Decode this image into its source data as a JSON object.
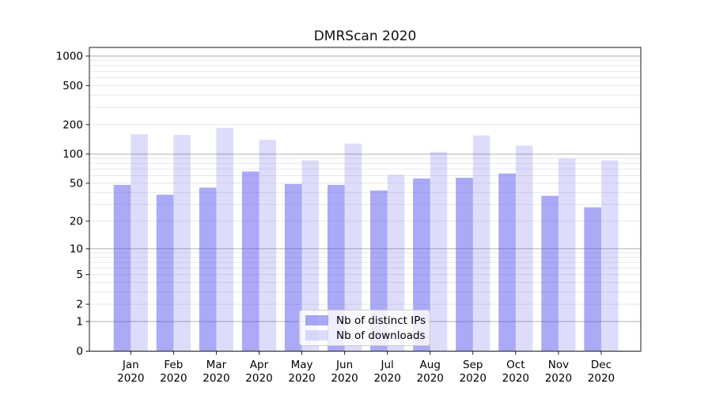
{
  "chart_data": {
    "type": "bar",
    "title": "DMRScan 2020",
    "xlabel": "",
    "ylabel": "",
    "x_tick_months": [
      "Jan",
      "Feb",
      "Mar",
      "Apr",
      "May",
      "Jun",
      "Jul",
      "Aug",
      "Sep",
      "Oct",
      "Nov",
      "Dec"
    ],
    "x_tick_year": "2020",
    "y_ticks": [
      0,
      1,
      2,
      5,
      10,
      20,
      50,
      100,
      200,
      500,
      1000
    ],
    "y_scale": "log10(value+1)",
    "ylim": [
      0,
      1190
    ],
    "grid": "horizontal major and minor gridlines",
    "legend_position": "lower center",
    "colors": {
      "bar_base": "#4242eb",
      "distinct_ips_on_white": "#a8a8ee",
      "downloads_on_white": "#dcdcf6",
      "grid_major": "#b0b0b0",
      "grid_minor": "#e8e8e8",
      "axis": "#1a1a1a"
    },
    "series": [
      {
        "name": "Nb of distinct IPs",
        "color": "rgba(66,66,235,0.45)",
        "values": [
          48,
          38,
          45,
          66,
          49,
          48,
          42,
          56,
          57,
          63,
          37,
          28
        ]
      },
      {
        "name": "Nb of downloads",
        "color": "rgba(66,66,235,0.18)",
        "values": [
          160,
          157,
          185,
          140,
          86,
          128,
          61,
          105,
          155,
          122,
          90,
          86
        ]
      }
    ]
  }
}
